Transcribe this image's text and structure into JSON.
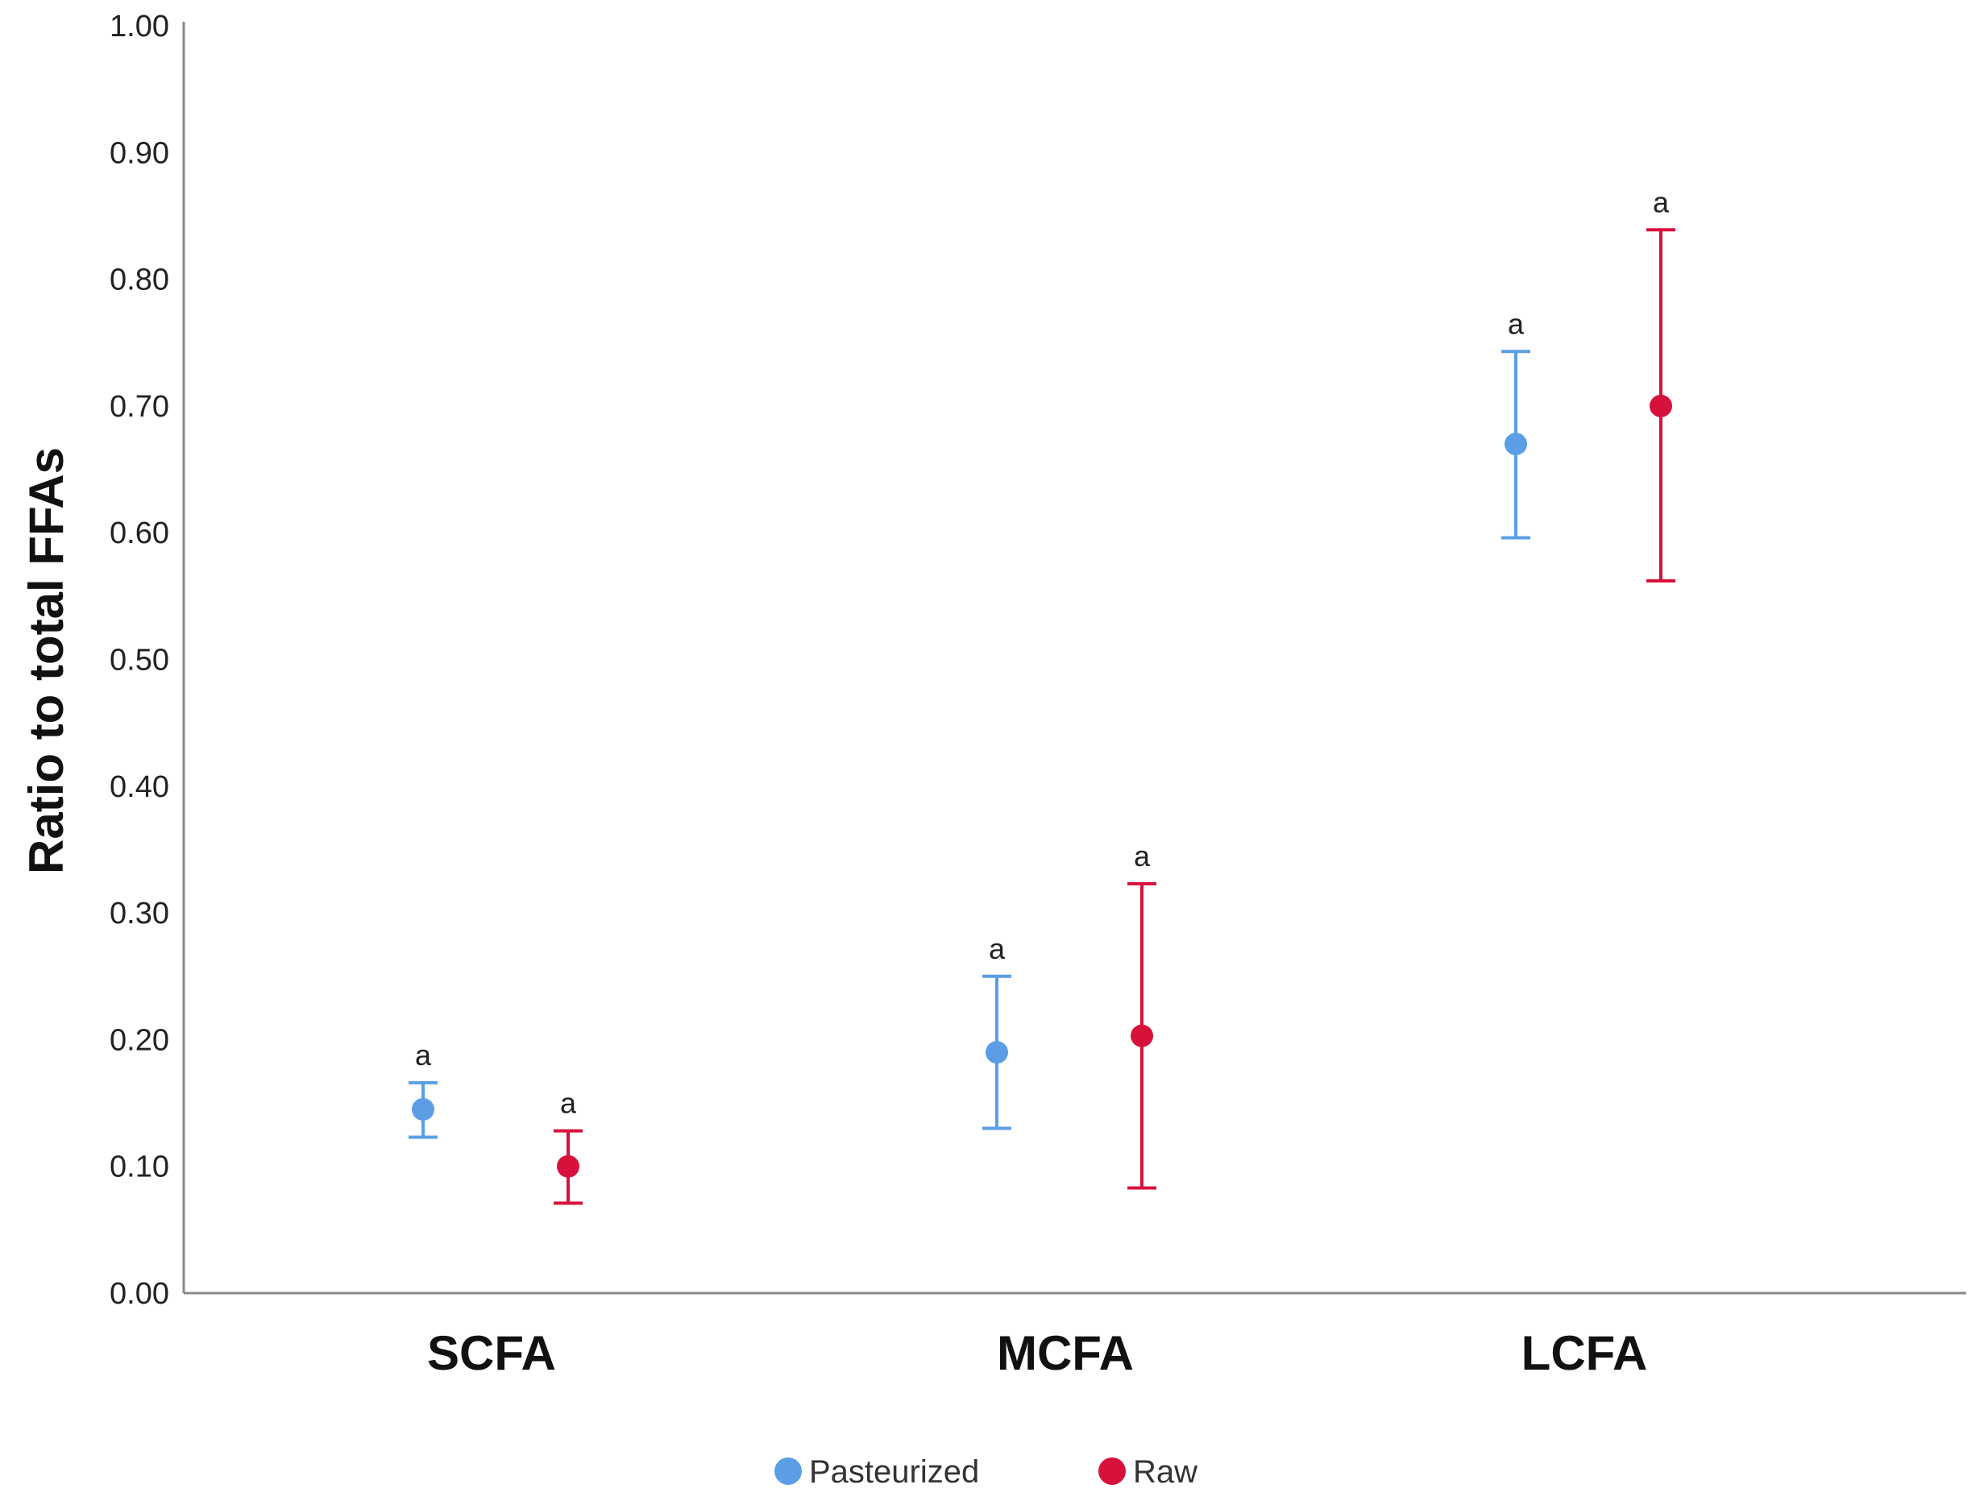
{
  "chart_data": {
    "type": "scatter",
    "subtype": "point-with-error-bars",
    "title": "",
    "xlabel": "",
    "ylabel": "Ratio to total FFAs",
    "ylim": [
      0,
      1.0
    ],
    "yticks": [
      "0.00",
      "0.10",
      "0.20",
      "0.30",
      "0.40",
      "0.50",
      "0.60",
      "0.70",
      "0.80",
      "0.90",
      "1.00"
    ],
    "categories": [
      "SCFA",
      "MCFA",
      "LCFA"
    ],
    "series": [
      {
        "name": "Pasteurized",
        "color": "#5b9ee6",
        "values": [
          0.145,
          0.19,
          0.67
        ],
        "lower": [
          0.123,
          0.13,
          0.596
        ],
        "upper": [
          0.166,
          0.25,
          0.743
        ],
        "annotations": [
          "a",
          "a",
          "a"
        ]
      },
      {
        "name": "Raw",
        "color": "#d6123c",
        "values": [
          0.1,
          0.203,
          0.7
        ],
        "lower": [
          0.071,
          0.083,
          0.562
        ],
        "upper": [
          0.128,
          0.323,
          0.839
        ],
        "annotations": [
          "a",
          "a",
          "a"
        ]
      }
    ],
    "legend": {
      "position": "bottom-center",
      "items": [
        "Pasteurized",
        "Raw"
      ]
    },
    "grid": false
  }
}
